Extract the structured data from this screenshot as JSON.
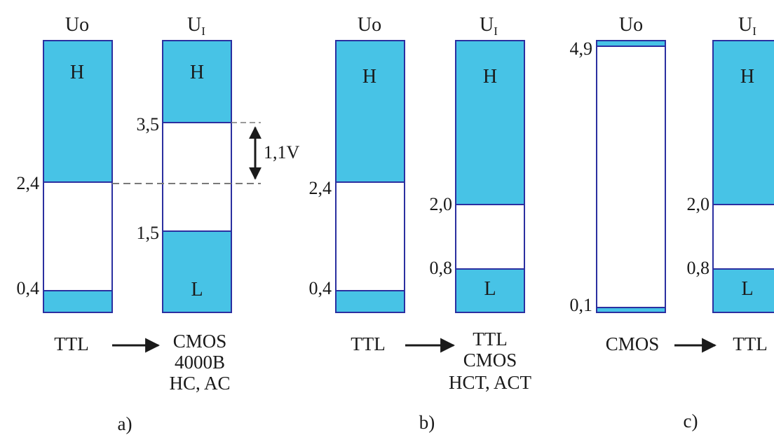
{
  "colors": {
    "fill": "#47c3e6",
    "border": "#2b2fa0",
    "ink": "#1a1a1a",
    "dash": "#7a7a7a"
  },
  "panels": {
    "a": {
      "caption": "a)",
      "out_header": "Uo",
      "in_header": "UI",
      "out_ticks": [
        "2,4",
        "0,4"
      ],
      "in_ticks": [
        "3,5",
        "1,5"
      ],
      "out_high": "H",
      "in_high": "H",
      "in_low": "L",
      "margin_label": "1,1V",
      "source": "TTL",
      "target_lines": [
        "CMOS",
        "4000B",
        "HC, AC"
      ]
    },
    "b": {
      "caption": "b)",
      "out_header": "Uo",
      "in_header": "UI",
      "out_ticks": [
        "2,4",
        "0,4"
      ],
      "in_ticks": [
        "2,0",
        "0,8"
      ],
      "out_high": "H",
      "in_high": "H",
      "in_low": "L",
      "source": "TTL",
      "target_lines": [
        "TTL",
        "CMOS",
        "HCT, ACT"
      ]
    },
    "c": {
      "caption": "c)",
      "out_header": "Uo",
      "in_header": "UI",
      "out_ticks": [
        "4,9",
        "0,1"
      ],
      "in_ticks": [
        "2,0",
        "0,8"
      ],
      "in_high": "H",
      "in_low": "L",
      "source": "CMOS",
      "target": "TTL"
    }
  }
}
